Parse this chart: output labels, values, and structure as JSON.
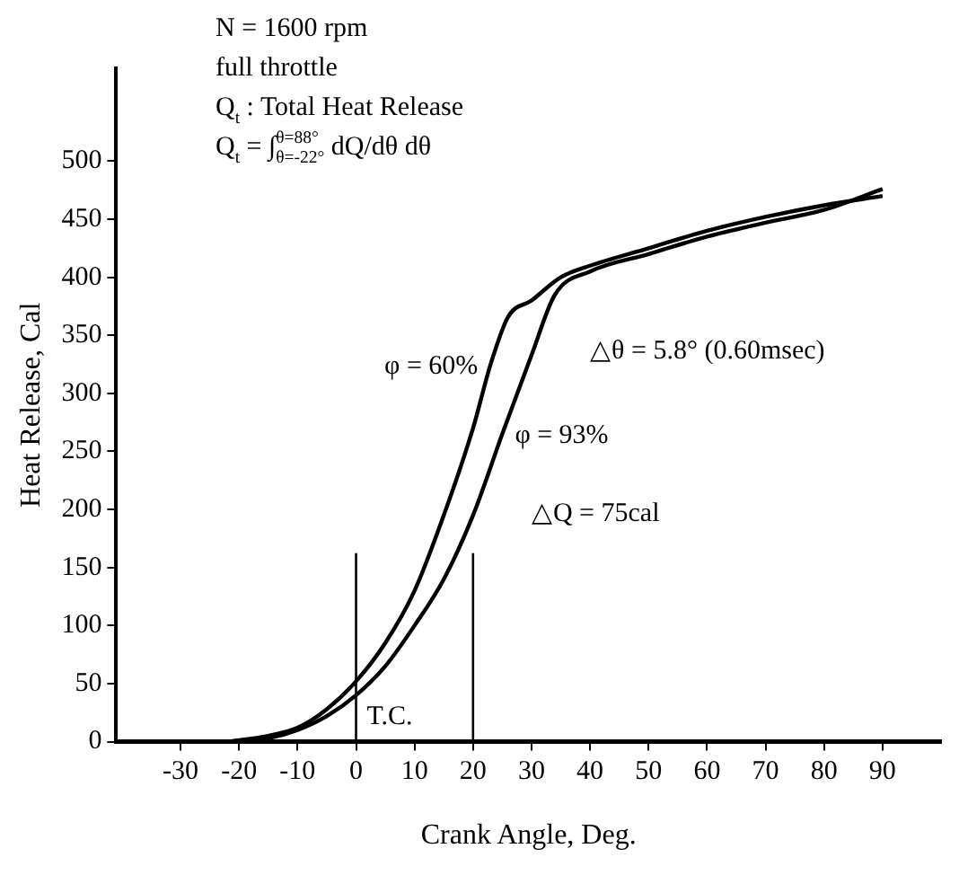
{
  "chart_data": {
    "type": "line",
    "xlabel": "Crank Angle, Deg.",
    "ylabel": "Heat Release, Cal",
    "annotations": [
      "N = 1600 rpm",
      "full throttle",
      "Q$_{t}$ : Total Heat Release",
      "Q$_{t}$ = ∫$_{θ=-22°}$$^{θ=88°}$ dQ/dθ dθ",
      "△θ = 5.8° (0.60msec)",
      "△Q = 75cal"
    ],
    "series": [
      {
        "name": "φ = 93%",
        "color": "#000000",
        "x": [
          -22,
          -15,
          -10,
          -5,
          0,
          5,
          10,
          15,
          20,
          25,
          30,
          34,
          40,
          50,
          60,
          70,
          80,
          90
        ],
        "values": [
          0,
          3,
          10,
          22,
          40,
          65,
          100,
          140,
          195,
          265,
          333,
          385,
          405,
          420,
          435,
          447,
          458,
          476
        ]
      },
      {
        "name": "φ = 60%",
        "color": "#000000",
        "x": [
          -22,
          -15,
          -10,
          -5,
          0,
          5,
          10,
          15,
          20,
          23,
          26,
          30,
          35,
          40,
          50,
          60,
          70,
          80,
          90
        ],
        "values": [
          0,
          5,
          12,
          28,
          52,
          85,
          130,
          195,
          270,
          325,
          366,
          380,
          400,
          410,
          425,
          440,
          452,
          462,
          470
        ]
      }
    ],
    "xlim": [
      -41,
      100
    ],
    "xticks": [
      -30,
      -20,
      -10,
      0,
      10,
      20,
      30,
      40,
      50,
      60,
      70,
      80,
      90
    ],
    "ylim": [
      0,
      580
    ],
    "yticks": [
      0,
      50,
      100,
      150,
      200,
      250,
      300,
      350,
      400,
      450,
      500
    ],
    "ref_lines": [
      {
        "axis": "x",
        "value": 0,
        "label": "T.C."
      },
      {
        "axis": "x",
        "value": 20
      }
    ],
    "grid": false,
    "legend": false,
    "marker": "none",
    "line_style": "solid"
  }
}
